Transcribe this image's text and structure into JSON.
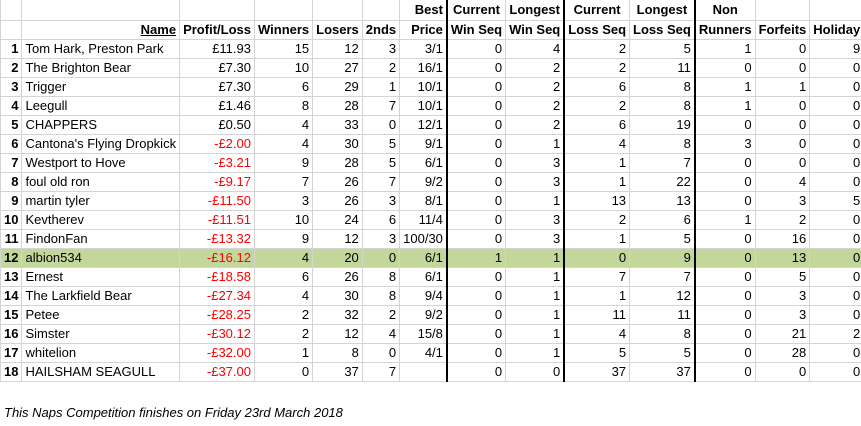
{
  "headers": {
    "name": "Name",
    "profit": "Profit/Loss",
    "winners": "Winners",
    "losers": "Losers",
    "seconds": "2nds",
    "best_top": "Best",
    "best_bottom": "Price",
    "cur_win_top": "Current",
    "cur_win_bottom": "Win Seq",
    "long_win_top": "Longest",
    "long_win_bottom": "Win Seq",
    "cur_loss_top": "Current",
    "cur_loss_bottom": "Loss Seq",
    "long_loss_top": "Longest",
    "long_loss_bottom": "Loss Seq",
    "non_top": "Non",
    "non_bottom": "Runners",
    "forfeits": "Forfeits",
    "holiday": "Holiday"
  },
  "rows": [
    {
      "rank": "1",
      "name": "Tom Hark, Preston Park",
      "profit": "£11.93",
      "neg": false,
      "winners": "15",
      "losers": "12",
      "seconds": "3",
      "best": "3/1",
      "cur_win": "0",
      "long_win": "4",
      "cur_loss": "2",
      "long_loss": "5",
      "non": "1",
      "forfeits": "0",
      "holiday": "9"
    },
    {
      "rank": "2",
      "name": "The Brighton Bear",
      "profit": "£7.30",
      "neg": false,
      "winners": "10",
      "losers": "27",
      "seconds": "2",
      "best": "16/1",
      "cur_win": "0",
      "long_win": "2",
      "cur_loss": "2",
      "long_loss": "11",
      "non": "0",
      "forfeits": "0",
      "holiday": "0"
    },
    {
      "rank": "3",
      "name": "Trigger",
      "profit": "£7.30",
      "neg": false,
      "winners": "6",
      "losers": "29",
      "seconds": "1",
      "best": "10/1",
      "cur_win": "0",
      "long_win": "2",
      "cur_loss": "6",
      "long_loss": "8",
      "non": "1",
      "forfeits": "1",
      "holiday": "0"
    },
    {
      "rank": "4",
      "name": "Leegull",
      "profit": "£1.46",
      "neg": false,
      "winners": "8",
      "losers": "28",
      "seconds": "7",
      "best": "10/1",
      "cur_win": "0",
      "long_win": "2",
      "cur_loss": "2",
      "long_loss": "8",
      "non": "1",
      "forfeits": "0",
      "holiday": "0"
    },
    {
      "rank": "5",
      "name": "CHAPPERS",
      "profit": "£0.50",
      "neg": false,
      "winners": "4",
      "losers": "33",
      "seconds": "0",
      "best": "12/1",
      "cur_win": "0",
      "long_win": "2",
      "cur_loss": "6",
      "long_loss": "19",
      "non": "0",
      "forfeits": "0",
      "holiday": "0"
    },
    {
      "rank": "6",
      "name": "Cantona's Flying Dropkick",
      "profit": "-£2.00",
      "neg": true,
      "winners": "4",
      "losers": "30",
      "seconds": "5",
      "best": "9/1",
      "cur_win": "0",
      "long_win": "1",
      "cur_loss": "4",
      "long_loss": "8",
      "non": "3",
      "forfeits": "0",
      "holiday": "0"
    },
    {
      "rank": "7",
      "name": "Westport to Hove",
      "profit": "-£3.21",
      "neg": true,
      "winners": "9",
      "losers": "28",
      "seconds": "5",
      "best": "6/1",
      "cur_win": "0",
      "long_win": "3",
      "cur_loss": "1",
      "long_loss": "7",
      "non": "0",
      "forfeits": "0",
      "holiday": "0"
    },
    {
      "rank": "8",
      "name": "foul old ron",
      "profit": "-£9.17",
      "neg": true,
      "winners": "7",
      "losers": "26",
      "seconds": "7",
      "best": "9/2",
      "cur_win": "0",
      "long_win": "3",
      "cur_loss": "1",
      "long_loss": "22",
      "non": "0",
      "forfeits": "4",
      "holiday": "0"
    },
    {
      "rank": "9",
      "name": "martin tyler",
      "profit": "-£11.50",
      "neg": true,
      "winners": "3",
      "losers": "26",
      "seconds": "3",
      "best": "8/1",
      "cur_win": "0",
      "long_win": "1",
      "cur_loss": "13",
      "long_loss": "13",
      "non": "0",
      "forfeits": "3",
      "holiday": "5"
    },
    {
      "rank": "10",
      "name": "Kevtherev",
      "profit": "-£11.51",
      "neg": true,
      "winners": "10",
      "losers": "24",
      "seconds": "6",
      "best": "11/4",
      "cur_win": "0",
      "long_win": "3",
      "cur_loss": "2",
      "long_loss": "6",
      "non": "1",
      "forfeits": "2",
      "holiday": "0"
    },
    {
      "rank": "11",
      "name": "FindonFan",
      "profit": "-£13.32",
      "neg": true,
      "winners": "9",
      "losers": "12",
      "seconds": "3",
      "best": "100/30",
      "cur_win": "0",
      "long_win": "3",
      "cur_loss": "1",
      "long_loss": "5",
      "non": "0",
      "forfeits": "16",
      "holiday": "0"
    },
    {
      "rank": "12",
      "name": "albion534",
      "profit": "-£16.12",
      "neg": true,
      "winners": "4",
      "losers": "20",
      "seconds": "0",
      "best": "6/1",
      "cur_win": "1",
      "long_win": "1",
      "cur_loss": "0",
      "long_loss": "9",
      "non": "0",
      "forfeits": "13",
      "holiday": "0",
      "highlight": true
    },
    {
      "rank": "13",
      "name": "Ernest",
      "profit": "-£18.58",
      "neg": true,
      "winners": "6",
      "losers": "26",
      "seconds": "8",
      "best": "6/1",
      "cur_win": "0",
      "long_win": "1",
      "cur_loss": "7",
      "long_loss": "7",
      "non": "0",
      "forfeits": "5",
      "holiday": "0"
    },
    {
      "rank": "14",
      "name": "The Larkfield Bear",
      "profit": "-£27.34",
      "neg": true,
      "winners": "4",
      "losers": "30",
      "seconds": "8",
      "best": "9/4",
      "cur_win": "0",
      "long_win": "1",
      "cur_loss": "1",
      "long_loss": "12",
      "non": "0",
      "forfeits": "3",
      "holiday": "0"
    },
    {
      "rank": "15",
      "name": "Petee",
      "profit": "-£28.25",
      "neg": true,
      "winners": "2",
      "losers": "32",
      "seconds": "2",
      "best": "9/2",
      "cur_win": "0",
      "long_win": "1",
      "cur_loss": "11",
      "long_loss": "11",
      "non": "0",
      "forfeits": "3",
      "holiday": "0"
    },
    {
      "rank": "16",
      "name": "Simster",
      "profit": "-£30.12",
      "neg": true,
      "winners": "2",
      "losers": "12",
      "seconds": "4",
      "best": "15/8",
      "cur_win": "0",
      "long_win": "1",
      "cur_loss": "4",
      "long_loss": "8",
      "non": "0",
      "forfeits": "21",
      "holiday": "2"
    },
    {
      "rank": "17",
      "name": "whitelion",
      "profit": "-£32.00",
      "neg": true,
      "winners": "1",
      "losers": "8",
      "seconds": "0",
      "best": "4/1",
      "cur_win": "0",
      "long_win": "1",
      "cur_loss": "5",
      "long_loss": "5",
      "non": "0",
      "forfeits": "28",
      "holiday": "0"
    },
    {
      "rank": "18",
      "name": "HAILSHAM SEAGULL",
      "profit": "-£37.00",
      "neg": true,
      "winners": "0",
      "losers": "37",
      "seconds": "7",
      "best": "",
      "cur_win": "0",
      "long_win": "0",
      "cur_loss": "37",
      "long_loss": "37",
      "non": "0",
      "forfeits": "0",
      "holiday": "0"
    }
  ],
  "footer": "This Naps Competition finishes on Friday 23rd March 2018",
  "colors": {
    "negative": "#ff0000",
    "highlight": "#c4d79b"
  }
}
